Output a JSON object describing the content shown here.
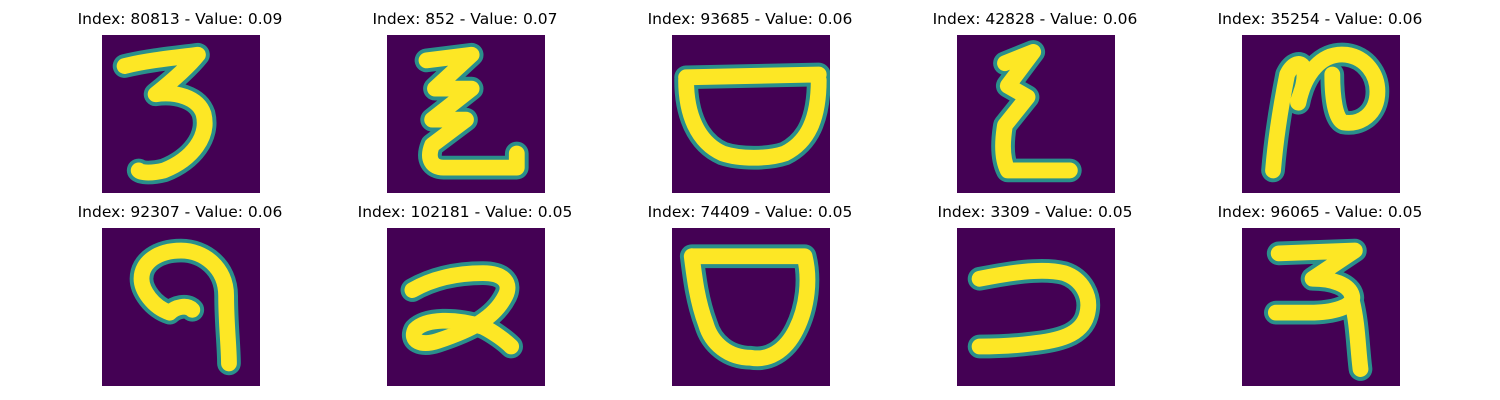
{
  "colors": {
    "background": "#440154",
    "stroke_core": "#fde725",
    "stroke_edge": "#2a8f8b",
    "stroke_mid": "#35b779"
  },
  "panels": [
    {
      "title": "Index: 80813 - Value: 0.09",
      "glyph": "digit-3"
    },
    {
      "title": "Index: 852 - Value: 0.07",
      "glyph": "zigzag-z"
    },
    {
      "title": "Index: 93685 - Value: 0.06",
      "glyph": "bowl"
    },
    {
      "title": "Index: 42828 - Value: 0.06",
      "glyph": "small-zigzag"
    },
    {
      "title": "Index: 35254 - Value: 0.06",
      "glyph": "loop-n"
    },
    {
      "title": "Index: 92307 - Value: 0.06",
      "glyph": "hook-9"
    },
    {
      "title": "Index: 102181 - Value: 0.05",
      "glyph": "looped-2"
    },
    {
      "title": "Index: 74409 - Value: 0.05",
      "glyph": "cup"
    },
    {
      "title": "Index: 3309 - Value: 0.05",
      "glyph": "reverse-c"
    },
    {
      "title": "Index: 96065 - Value: 0.05",
      "glyph": "ra"
    }
  ]
}
